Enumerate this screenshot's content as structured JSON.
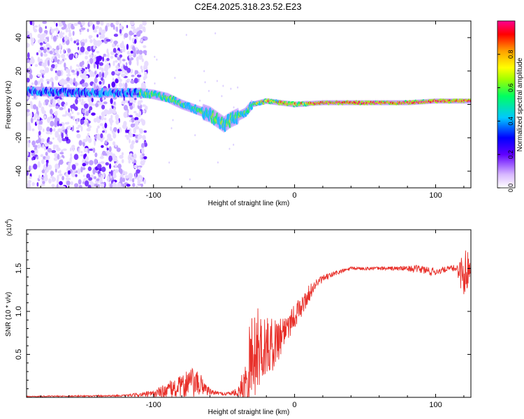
{
  "title": "C2E4.2025.318.23.52.E23",
  "chart_data": [
    {
      "type": "heatmap",
      "name": "spectrogram",
      "xlabel": "Height of straight line (km)",
      "ylabel": "Frequency (Hz)",
      "xlim": [
        -190,
        125
      ],
      "ylim": [
        -50,
        50
      ],
      "xticks": [
        -100,
        0,
        100
      ],
      "xtick_labels": [
        "-100",
        "0",
        "100"
      ],
      "yticks": [
        -40,
        -20,
        0,
        20,
        40
      ],
      "ytick_labels": [
        "-40",
        "-20",
        "0",
        "20",
        "40"
      ],
      "noise_region_x": [
        -190,
        -105
      ],
      "signal_ridge": {
        "x": [
          -190,
          -150,
          -110,
          -100,
          -90,
          -80,
          -70,
          -60,
          -55,
          -50,
          -45,
          -40,
          -35,
          -30,
          -25,
          -20,
          -10,
          0,
          20,
          40,
          60,
          80,
          100,
          125
        ],
        "freq": [
          8,
          7,
          7,
          6,
          4,
          0,
          -3,
          -6,
          -9,
          -12,
          -9,
          -7,
          -5,
          0,
          1,
          2,
          1,
          0,
          1,
          1,
          1,
          1,
          2,
          2
        ]
      },
      "colorbar": {
        "label": "Normalized spectral amplitude",
        "range": [
          0,
          1
        ],
        "ticks": [
          0.0,
          0.2,
          0.4,
          0.6,
          0.8
        ],
        "tick_labels": [
          "0.0",
          "0.2",
          "0.4",
          "0.6",
          "0.8"
        ],
        "colormap": [
          "#ffffff",
          "#d0b0ff",
          "#6000ff",
          "#0000ff",
          "#00c0ff",
          "#00ff60",
          "#a0ff00",
          "#ffff00",
          "#ffa000",
          "#ff0000",
          "#ff0090"
        ]
      }
    },
    {
      "type": "line",
      "name": "snr",
      "xlabel": "Height of straight line (km)",
      "ylabel": "SNR (10 * v/v)",
      "y_multiplier_label": "(x10",
      "y_multiplier_exp": "4",
      "xlim": [
        -190,
        125
      ],
      "ylim": [
        0,
        1.95
      ],
      "xticks": [
        -100,
        0,
        100
      ],
      "xtick_labels": [
        "-100",
        "0",
        "100"
      ],
      "yticks": [
        0.5,
        1.0,
        1.5
      ],
      "ytick_labels": [
        "0.5",
        "1.0",
        "1.5"
      ],
      "color": "#e8302a",
      "envelope": {
        "x": [
          -190,
          -120,
          -100,
          -90,
          -80,
          -75,
          -70,
          -65,
          -60,
          -55,
          -50,
          -45,
          -40,
          -36,
          -33,
          -30,
          -27,
          -24,
          -20,
          -15,
          -10,
          -5,
          0,
          5,
          10,
          15,
          20,
          30,
          40,
          60,
          80,
          90,
          95,
          100,
          110,
          115,
          118,
          120,
          122,
          125
        ],
        "mean": [
          0.01,
          0.02,
          0.04,
          0.08,
          0.12,
          0.18,
          0.15,
          0.14,
          0.06,
          0.05,
          0.04,
          0.05,
          0.06,
          0.12,
          0.35,
          0.45,
          0.55,
          0.6,
          0.58,
          0.62,
          0.72,
          0.85,
          0.95,
          1.05,
          1.2,
          1.32,
          1.38,
          1.45,
          1.5,
          1.5,
          1.5,
          1.49,
          1.47,
          1.46,
          1.5,
          1.5,
          1.45,
          1.4,
          1.5,
          1.5
        ],
        "amp": [
          0.006,
          0.01,
          0.04,
          0.1,
          0.14,
          0.2,
          0.16,
          0.12,
          0.04,
          0.02,
          0.02,
          0.03,
          0.05,
          0.25,
          0.6,
          0.55,
          0.5,
          0.45,
          0.35,
          0.3,
          0.25,
          0.2,
          0.15,
          0.12,
          0.1,
          0.06,
          0.04,
          0.03,
          0.02,
          0.02,
          0.03,
          0.05,
          0.06,
          0.04,
          0.03,
          0.05,
          0.2,
          0.35,
          0.25,
          0.06
        ]
      }
    }
  ]
}
